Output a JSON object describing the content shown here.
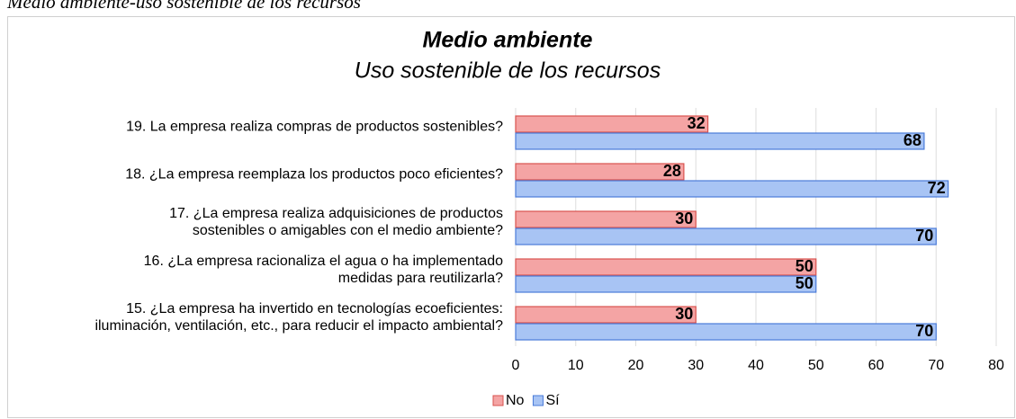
{
  "caption": "Medio ambiente-uso sostenible de los recursos",
  "chart_data": {
    "type": "hbar",
    "title": "Medio ambiente",
    "subtitle": "Uso sostenible de los recursos",
    "categories": [
      "19.  La empresa realiza compras de productos sostenibles?",
      "18. ¿La empresa reemplaza los productos poco eficientes?",
      "17.  ¿La empresa realiza adquisiciones de productos\nsostenibles o amigables con el medio ambiente?",
      "16.  ¿La empresa racionaliza el agua o ha implementado\nmedidas para reutilizarla?",
      "15.  ¿La empresa ha invertido en tecnologías ecoeficientes:\niluminación, ventilación, etc., para reducir el impacto ambiental?"
    ],
    "series": [
      {
        "name": "No",
        "color": "#f4a4a4",
        "edge": "#d9534f",
        "values": [
          32,
          28,
          30,
          50,
          30
        ]
      },
      {
        "name": "Sí",
        "color": "#a8c4f4",
        "edge": "#4a7bd9",
        "values": [
          68,
          72,
          70,
          50,
          70
        ]
      }
    ],
    "xlim": [
      0,
      80
    ],
    "xticks": [
      0,
      10,
      20,
      30,
      40,
      50,
      60,
      70,
      80
    ],
    "grid": true,
    "legend": "bottom"
  }
}
